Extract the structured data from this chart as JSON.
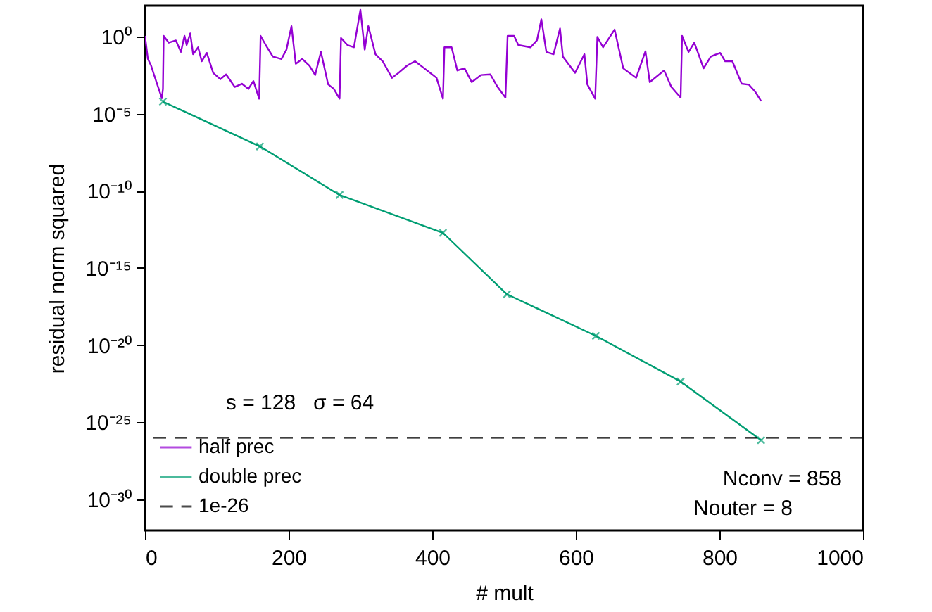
{
  "chart_data": {
    "type": "line",
    "xlabel": "# mult",
    "ylabel": "residual norm squared",
    "log": "y",
    "xlim": [
      0,
      1000
    ],
    "xticks": [
      0,
      200,
      400,
      600,
      800,
      1000
    ],
    "ylim": [
      1e-32,
      100
    ],
    "yticks": [
      {
        "value": 1e-30,
        "label": "10⁻³⁰"
      },
      {
        "value": 1e-25,
        "label": "10⁻²⁵"
      },
      {
        "value": 1e-20,
        "label": "10⁻²⁰"
      },
      {
        "value": 1e-15,
        "label": "10⁻¹⁵"
      },
      {
        "value": 1e-10,
        "label": "10⁻¹⁰"
      },
      {
        "value": 1e-05,
        "label": "10⁻⁵"
      },
      {
        "value": 1,
        "label": "10⁰"
      }
    ],
    "grid": false,
    "legend": "bottom left",
    "series": [
      {
        "name": "half prec",
        "color": "#9400d3",
        "marker": "none",
        "x": [
          0,
          4,
          8.5,
          12,
          17,
          23.5,
          25,
          26,
          33,
          43,
          50,
          55,
          58,
          63,
          67,
          74,
          79,
          86,
          95,
          105,
          113,
          125,
          135,
          144,
          151,
          159,
          161,
          170,
          178,
          190,
          197,
          204,
          210,
          219,
          229,
          237,
          245,
          255,
          263,
          271,
          273,
          282,
          291,
          300,
          306,
          311,
          321,
          331,
          344,
          353,
          365,
          376,
          389,
          406,
          415,
          417,
          427,
          435,
          445,
          455,
          468,
          481,
          491,
          502,
          505,
          514,
          520,
          537,
          546,
          552,
          559,
          569,
          578,
          582,
          599,
          612,
          616,
          627,
          630,
          638,
          654,
          666,
          684,
          697,
          703,
          723,
          733,
          746,
          748,
          757,
          765,
          778,
          788,
          801,
          808,
          818,
          831,
          841,
          850,
          858
        ],
        "values": [
          1.1,
          0.035,
          0.013,
          0.004,
          0.0008,
          0.0001,
          0.0004,
          1.1,
          0.4,
          0.56,
          0.1,
          1.1,
          0.28,
          1.6,
          0.071,
          0.2,
          0.025,
          0.087,
          0.0044,
          0.0017,
          0.0035,
          0.00054,
          0.00087,
          0.0004,
          0.0013,
          9.3e-05,
          1.1,
          0.2,
          0.05,
          0.035,
          0.14,
          4.7,
          0.017,
          0.035,
          0.013,
          0.0032,
          0.1,
          0.0008,
          0.0004,
          9.3e-05,
          0.8,
          0.28,
          0.2,
          54,
          0.14,
          4.7,
          0.071,
          0.025,
          0.0021,
          0.0044,
          0.013,
          0.025,
          0.0087,
          0.0021,
          9.3e-05,
          0.2,
          0.2,
          0.0063,
          0.0087,
          0.0011,
          0.0032,
          0.0035,
          0.00054,
          0.00011,
          1.1,
          1.1,
          0.28,
          0.2,
          0.58,
          13,
          0.1,
          0.071,
          3.3,
          0.05,
          0.0044,
          0.071,
          0.0008,
          9.3e-05,
          0.93,
          0.2,
          2.8,
          0.0087,
          0.0021,
          0.11,
          0.0011,
          0.0063,
          0.00054,
          0.00011,
          1.1,
          0.1,
          0.4,
          0.0087,
          0.05,
          0.087,
          0.025,
          0.025,
          0.00087,
          0.00076,
          0.00026,
          6.6e-05
        ]
      },
      {
        "name": "double prec",
        "color": "#009e73",
        "marker": "cross",
        "x": [
          25,
          160,
          271,
          415,
          504,
          628,
          746,
          858
        ],
        "values": [
          6e-05,
          7.6e-08,
          5.4e-11,
          1.9e-13,
          2e-17,
          4e-20,
          4.4e-23,
          7e-27
        ]
      }
    ],
    "ref_lines": [
      {
        "axis": "y",
        "value": 1e-26,
        "label": "1e-26",
        "color": "#000000",
        "line_style": "dashed"
      }
    ],
    "annotations": [
      "s = 128   σ = 64",
      "Nconv = 858",
      "Nouter = 8"
    ]
  }
}
